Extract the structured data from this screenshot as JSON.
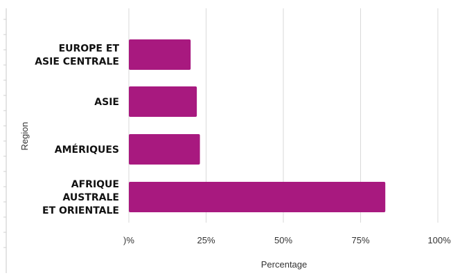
{
  "chart_data": {
    "type": "bar",
    "orientation": "horizontal",
    "categories": [
      [
        "EUROPE ET",
        "ASIE CENTRALE"
      ],
      [
        "ASIE"
      ],
      [
        "AMÉRIQUES"
      ],
      [
        "AFRIQUE",
        "AUSTRALE",
        "ET ORIENTALE"
      ]
    ],
    "values": [
      20,
      22,
      23,
      83
    ],
    "xlim": [
      0,
      100
    ],
    "xticks": [
      0,
      25,
      50,
      75,
      100
    ],
    "xtick_labels": [
      ")%",
      "25%",
      "50%",
      "75%",
      "100%"
    ],
    "xlabel": "Percentage",
    "ylabel": "Region",
    "title": "",
    "grid": "vertical",
    "bar_color": "#a8197f"
  }
}
